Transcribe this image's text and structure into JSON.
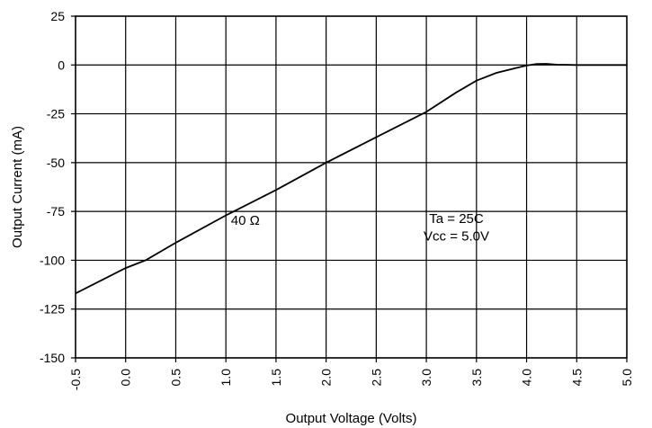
{
  "chart_data": {
    "type": "line",
    "title": "",
    "xlabel": "Output Voltage (Volts)",
    "ylabel": "Output Current (mA)",
    "xlim": [
      -0.5,
      5.0
    ],
    "ylim": [
      -150,
      25
    ],
    "grid": true,
    "x_ticks": [
      "-0.5",
      "0.0",
      "0.5",
      "1.0",
      "1.5",
      "2.0",
      "2.5",
      "3.0",
      "3.5",
      "4.0",
      "4.5",
      "5.0"
    ],
    "y_ticks": [
      "25",
      "0",
      "-25",
      "-50",
      "-75",
      "-100",
      "-125",
      "-150"
    ],
    "series": [
      {
        "x": [
          -0.5,
          0.0,
          0.2,
          0.5,
          1.0,
          1.5,
          2.0,
          2.5,
          3.0,
          3.3,
          3.5,
          3.7,
          3.9,
          4.0,
          4.1,
          4.2,
          4.3,
          4.5,
          5.0
        ],
        "y": [
          -117,
          -104,
          -100,
          -91,
          -77,
          -64,
          -50,
          -37,
          -24,
          -14,
          -8,
          -4,
          -1.5,
          -0.3,
          0.5,
          0.6,
          0.2,
          0,
          0
        ]
      }
    ],
    "annotations": [
      "40 Ω",
      "Ta = 25C",
      "Vcc = 5.0V"
    ],
    "colors": {
      "line": "#000000",
      "grid": "#000000",
      "background": "#ffffff"
    }
  }
}
